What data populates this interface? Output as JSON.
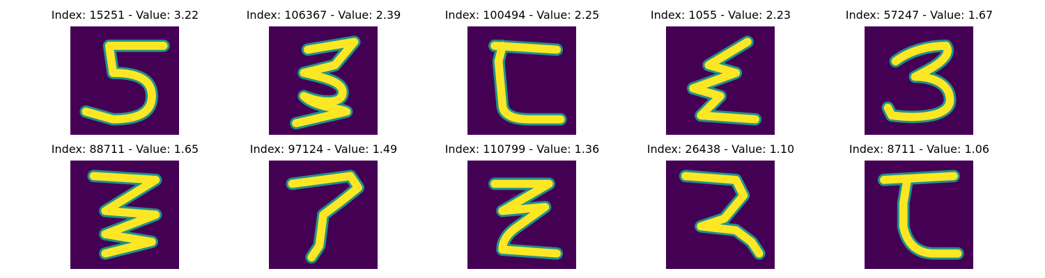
{
  "colors": {
    "background": "#440154",
    "edge": "#21918c",
    "mid": "#7ad151",
    "core": "#fde725"
  },
  "panels": [
    {
      "index": 15251,
      "value": "3.22",
      "title": "Index: 15251 - Value: 3.22",
      "glyph": "5-like stroke"
    },
    {
      "index": 106367,
      "value": "2.39",
      "title": "Index: 106367 - Value: 2.39",
      "glyph": "3-like stroke"
    },
    {
      "index": 100494,
      "value": "2.25",
      "title": "Index: 100494 - Value: 2.25",
      "glyph": "C-like stroke"
    },
    {
      "index": 1055,
      "value": "2.23",
      "title": "Index: 1055 - Value: 2.23",
      "glyph": "zigzag stroke"
    },
    {
      "index": 57247,
      "value": "1.67",
      "title": "Index: 57247 - Value: 1.67",
      "glyph": "3-like stroke"
    },
    {
      "index": 88711,
      "value": "1.65",
      "title": "Index: 88711 - Value: 1.65",
      "glyph": "zigzag stroke"
    },
    {
      "index": 97124,
      "value": "1.49",
      "title": "Index: 97124 - Value: 1.49",
      "glyph": "T-like stroke"
    },
    {
      "index": 110799,
      "value": "1.36",
      "title": "Index: 110799 - Value: 1.36",
      "glyph": "z-like stroke"
    },
    {
      "index": 26438,
      "value": "1.10",
      "title": "Index: 26438 - Value: 1.10",
      "glyph": "2-like stroke"
    },
    {
      "index": 8711,
      "value": "1.06",
      "title": "Index: 8711 - Value: 1.06",
      "glyph": "C-like stroke"
    }
  ]
}
